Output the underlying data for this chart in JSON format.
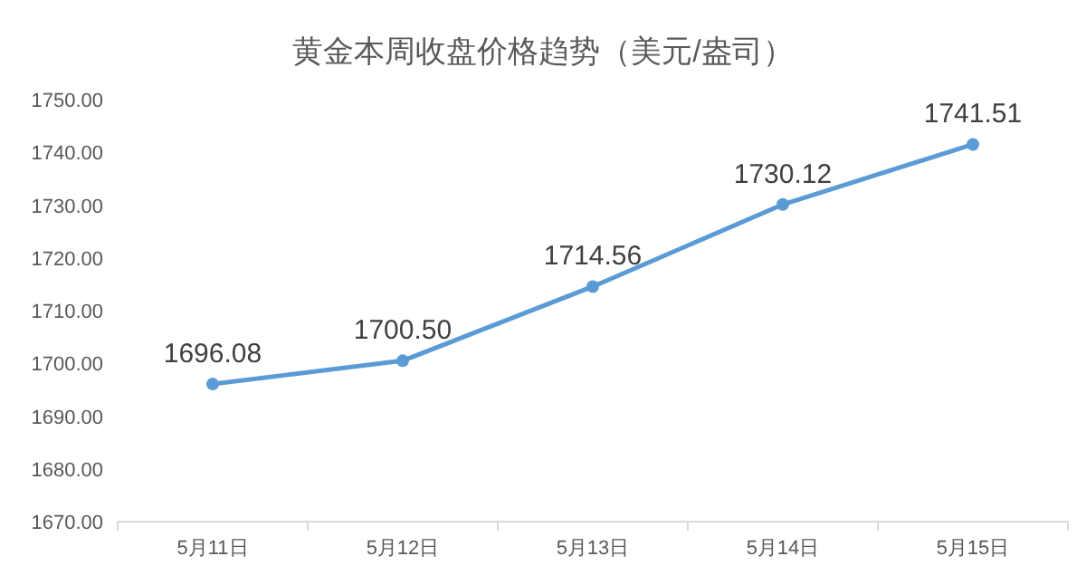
{
  "chart_data": {
    "type": "line",
    "title": "黄金本周收盘价格趋势（美元/盎司）",
    "categories": [
      "5月11日",
      "5月12日",
      "5月13日",
      "5月14日",
      "5月15日"
    ],
    "series": [
      {
        "color": "#5b9bd5",
        "values": [
          1696.08,
          1700.5,
          1714.56,
          1730.12,
          1741.51
        ]
      }
    ],
    "value_labels": [
      "1696.08",
      "1700.50",
      "1714.56",
      "1730.12",
      "1741.51"
    ],
    "ylim": [
      1670,
      1750
    ],
    "yticks": [
      {
        "value": 1670,
        "label": "1670.00"
      },
      {
        "value": 1680,
        "label": "1680.00"
      },
      {
        "value": 1690,
        "label": "1690.00"
      },
      {
        "value": 1700,
        "label": "1700.00"
      },
      {
        "value": 1710,
        "label": "1710.00"
      },
      {
        "value": 1720,
        "label": "1720.00"
      },
      {
        "value": 1730,
        "label": "1730.00"
      },
      {
        "value": 1740,
        "label": "1740.00"
      },
      {
        "value": 1750,
        "label": "1750.00"
      }
    ],
    "marker": "circle",
    "line_style": "solid",
    "grid": false
  }
}
